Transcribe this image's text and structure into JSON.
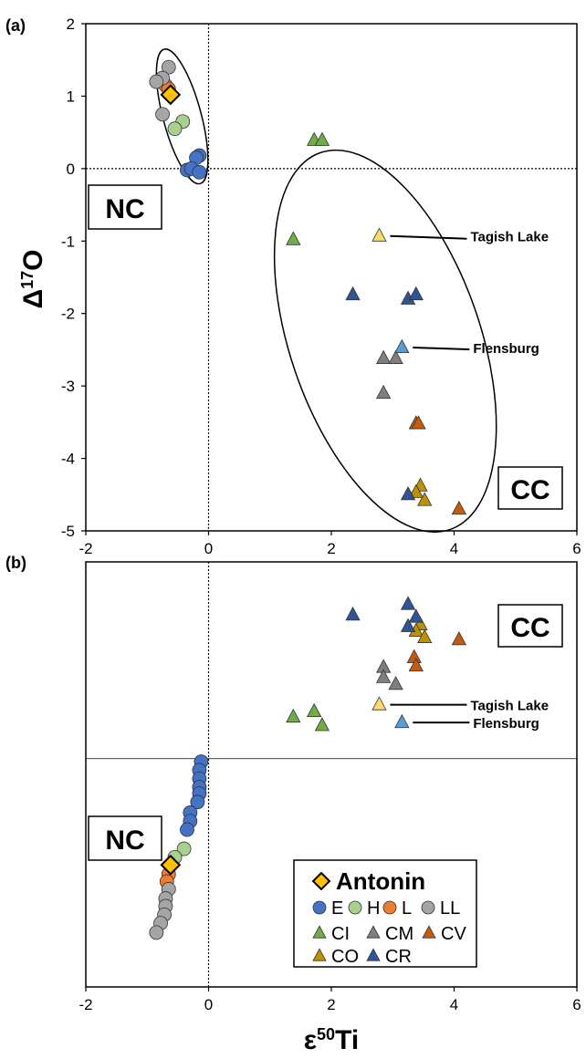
{
  "chart_data": [
    {
      "panel": "(a)",
      "type": "scatter",
      "title": "",
      "xlabel": "",
      "ylabel": "Δ17O",
      "ylabel_parts": {
        "base": "Δ",
        "sup": "17",
        "tail": "O"
      },
      "xlim": [
        -2,
        6
      ],
      "ylim": [
        -5,
        2
      ],
      "xticks": [
        "-2",
        "0",
        "2",
        "4",
        "6"
      ],
      "yticks": [
        "2",
        "1",
        "0",
        "-1",
        "-2",
        "-3",
        "-4",
        "-5"
      ],
      "reference_lines": [
        {
          "axis": "x",
          "value": 0,
          "style": "dotted"
        },
        {
          "axis": "y",
          "value": 0,
          "style": "dotted"
        }
      ],
      "group_labels": [
        "NC",
        "CC"
      ],
      "annotations": [
        {
          "text": "Tagish Lake",
          "x": 2.78,
          "y": -0.93
        },
        {
          "text": "Flensburg",
          "x": 3.15,
          "y": -2.47
        }
      ],
      "series": [
        {
          "name": "E",
          "marker": "circle",
          "color": "#4472c4",
          "points": [
            [
              -0.15,
              0.18
            ],
            [
              -0.2,
              0.15
            ],
            [
              -0.35,
              -0.02
            ],
            [
              -0.28,
              0.0
            ],
            [
              -0.15,
              -0.05
            ]
          ]
        },
        {
          "name": "H",
          "marker": "circle",
          "color": "#a9d18e",
          "points": [
            [
              -0.42,
              0.65
            ],
            [
              -0.55,
              0.55
            ]
          ]
        },
        {
          "name": "L",
          "marker": "circle",
          "color": "#ed7d31",
          "points": [
            [
              -0.7,
              1.15
            ],
            [
              -0.65,
              1.1
            ]
          ]
        },
        {
          "name": "LL",
          "marker": "circle",
          "color": "#a5a5a5",
          "points": [
            [
              -0.65,
              1.4
            ],
            [
              -0.75,
              1.25
            ],
            [
              -0.85,
              1.2
            ],
            [
              -0.75,
              0.75
            ]
          ]
        },
        {
          "name": "CI",
          "marker": "triangle",
          "color": "#70ad47",
          "points": [
            [
              1.72,
              0.39
            ],
            [
              1.85,
              0.39
            ],
            [
              1.38,
              -0.98
            ]
          ]
        },
        {
          "name": "CM",
          "marker": "triangle",
          "color": "#7f7f7f",
          "points": [
            [
              2.85,
              -2.62
            ],
            [
              3.05,
              -2.62
            ],
            [
              2.85,
              -3.1
            ]
          ]
        },
        {
          "name": "CV",
          "marker": "triangle",
          "color": "#c55a11",
          "points": [
            [
              3.38,
              -3.52
            ],
            [
              3.42,
              -3.52
            ],
            [
              4.08,
              -4.7
            ]
          ]
        },
        {
          "name": "CO",
          "marker": "triangle",
          "color": "#bf9000",
          "points": [
            [
              3.45,
              -4.38
            ],
            [
              3.38,
              -4.47
            ],
            [
              3.52,
              -4.58
            ]
          ]
        },
        {
          "name": "CR",
          "marker": "triangle",
          "color": "#2f5597",
          "points": [
            [
              2.35,
              -1.74
            ],
            [
              3.25,
              -1.8
            ],
            [
              3.38,
              -1.74
            ],
            [
              3.25,
              -4.5
            ]
          ]
        },
        {
          "name": "Tagish Lake",
          "marker": "triangle",
          "color": "#ffd966",
          "points": [
            [
              2.78,
              -0.93
            ]
          ]
        },
        {
          "name": "Flensburg",
          "marker": "triangle",
          "color": "#5b9bd5",
          "points": [
            [
              3.15,
              -2.47
            ]
          ]
        },
        {
          "name": "Antonin",
          "marker": "diamond",
          "color": "#ffc000",
          "points": [
            [
              -0.62,
              1.02
            ]
          ]
        }
      ],
      "ellipses": [
        {
          "cx": -0.43,
          "cy": 0.72,
          "rx": 0.31,
          "ry": 0.96,
          "rotate_deg": -15
        },
        {
          "cx": 2.88,
          "cy": -2.38,
          "rx": 1.55,
          "ry": 2.75,
          "rotate_deg": -19
        }
      ]
    },
    {
      "panel": "(b)",
      "type": "scatter",
      "title": "",
      "xlabel": "ε50Ti",
      "xlabel_parts": {
        "base": "ε",
        "sup": "50",
        "tail": "Ti"
      },
      "ylabel": "",
      "xlim": [
        -2,
        6
      ],
      "ylim": [
        0,
        1
      ],
      "xticks": [
        "-2",
        "0",
        "2",
        "4",
        "6"
      ],
      "reference_lines": [
        {
          "axis": "x",
          "value": 0,
          "style": "dotted"
        },
        {
          "axis": "y",
          "value": 0.537,
          "style": "solid"
        }
      ],
      "group_labels": [
        "NC",
        "CC"
      ],
      "annotations": [
        {
          "text": "Tagish Lake",
          "x": 2.78,
          "y": 0.664
        },
        {
          "text": "Flensburg",
          "x": 3.15,
          "y": 0.622
        }
      ],
      "legend": {
        "title": "Antonin",
        "rows": [
          [
            {
              "label": "E",
              "marker": "circle",
              "color": "#4472c4"
            },
            {
              "label": "H",
              "marker": "circle",
              "color": "#a9d18e"
            },
            {
              "label": "L",
              "marker": "circle",
              "color": "#ed7d31"
            },
            {
              "label": "LL",
              "marker": "circle",
              "color": "#a5a5a5"
            }
          ],
          [
            {
              "label": "CI",
              "marker": "triangle",
              "color": "#70ad47"
            },
            {
              "label": "CM",
              "marker": "triangle",
              "color": "#7f7f7f"
            },
            {
              "label": "CV",
              "marker": "triangle",
              "color": "#c55a11"
            }
          ],
          [
            {
              "label": "CO",
              "marker": "triangle",
              "color": "#bf9000"
            },
            {
              "label": "CR",
              "marker": "triangle",
              "color": "#2f5597"
            }
          ]
        ]
      },
      "series": [
        {
          "name": "E",
          "marker": "circle",
          "color": "#4472c4",
          "points": [
            [
              -0.12,
              0.53
            ],
            [
              -0.15,
              0.51
            ],
            [
              -0.15,
              0.49
            ],
            [
              -0.15,
              0.47
            ],
            [
              -0.15,
              0.455
            ],
            [
              -0.18,
              0.435
            ],
            [
              -0.3,
              0.41
            ],
            [
              -0.3,
              0.39
            ],
            [
              -0.35,
              0.37
            ]
          ]
        },
        {
          "name": "H",
          "marker": "circle",
          "color": "#a9d18e",
          "points": [
            [
              -0.4,
              0.325
            ],
            [
              -0.55,
              0.305
            ]
          ]
        },
        {
          "name": "L",
          "marker": "circle",
          "color": "#ed7d31",
          "points": [
            [
              -0.65,
              0.265
            ],
            [
              -0.68,
              0.248
            ]
          ]
        },
        {
          "name": "LL",
          "marker": "circle",
          "color": "#a5a5a5",
          "points": [
            [
              -0.65,
              0.23
            ],
            [
              -0.7,
              0.208
            ],
            [
              -0.7,
              0.19
            ],
            [
              -0.72,
              0.17
            ],
            [
              -0.78,
              0.15
            ],
            [
              -0.85,
              0.128
            ]
          ]
        },
        {
          "name": "CI",
          "marker": "triangle",
          "color": "#70ad47",
          "points": [
            [
              1.72,
              0.648
            ],
            [
              1.38,
              0.635
            ],
            [
              1.85,
              0.615
            ]
          ]
        },
        {
          "name": "CM",
          "marker": "triangle",
          "color": "#7f7f7f",
          "points": [
            [
              2.85,
              0.752
            ],
            [
              2.85,
              0.728
            ],
            [
              3.05,
              0.712
            ]
          ]
        },
        {
          "name": "CV",
          "marker": "triangle",
          "color": "#c55a11",
          "points": [
            [
              3.35,
              0.775
            ],
            [
              3.38,
              0.755
            ],
            [
              4.08,
              0.817
            ]
          ]
        },
        {
          "name": "CO",
          "marker": "triangle",
          "color": "#bf9000",
          "points": [
            [
              3.45,
              0.852
            ],
            [
              3.38,
              0.837
            ],
            [
              3.52,
              0.822
            ]
          ]
        },
        {
          "name": "CR",
          "marker": "triangle",
          "color": "#2f5597",
          "points": [
            [
              3.25,
              0.9
            ],
            [
              2.35,
              0.875
            ],
            [
              3.38,
              0.87
            ],
            [
              3.25,
              0.848
            ]
          ]
        },
        {
          "name": "Tagish Lake",
          "marker": "triangle",
          "color": "#ffd966",
          "points": [
            [
              2.78,
              0.664
            ]
          ]
        },
        {
          "name": "Flensburg",
          "marker": "triangle",
          "color": "#5b9bd5",
          "points": [
            [
              3.15,
              0.622
            ]
          ]
        },
        {
          "name": "Antonin",
          "marker": "diamond",
          "color": "#ffc000",
          "points": [
            [
              -0.62,
              0.287
            ]
          ]
        }
      ]
    }
  ]
}
